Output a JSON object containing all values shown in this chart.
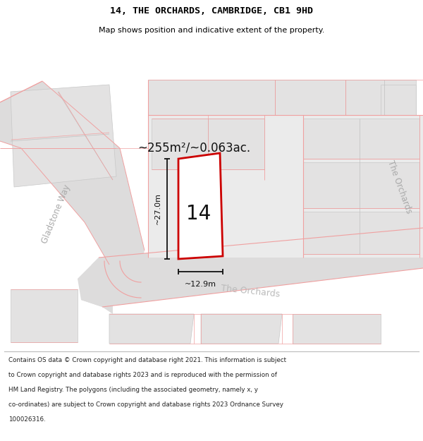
{
  "title_line1": "14, THE ORCHARDS, CAMBRIDGE, CB1 9HD",
  "title_line2": "Map shows position and indicative extent of the property.",
  "area_label": "~255m²/~0.063ac.",
  "width_label": "~12.9m",
  "height_label": "~27.0m",
  "number_label": "14",
  "street_label1": "Gladstone Way",
  "street_label2": "The Orchards",
  "street_label3": "The Orchards",
  "footer_lines": [
    "Contains OS data © Crown copyright and database right 2021. This information is subject",
    "to Crown copyright and database rights 2023 and is reproduced with the permission of",
    "HM Land Registry. The polygons (including the associated geometry, namely x, y",
    "co-ordinates) are subject to Crown copyright and database rights 2023 Ordnance Survey",
    "100026316."
  ],
  "map_bg": "#f2f1f1",
  "road_fill": "#dddcdc",
  "bld_fill": "#e3e2e2",
  "bld_edge": "#c8c8c8",
  "red_line": "#f0a0a0",
  "gray_line": "#c0c0c0",
  "plot_red": "#cc0000",
  "dim_black": "#111111"
}
